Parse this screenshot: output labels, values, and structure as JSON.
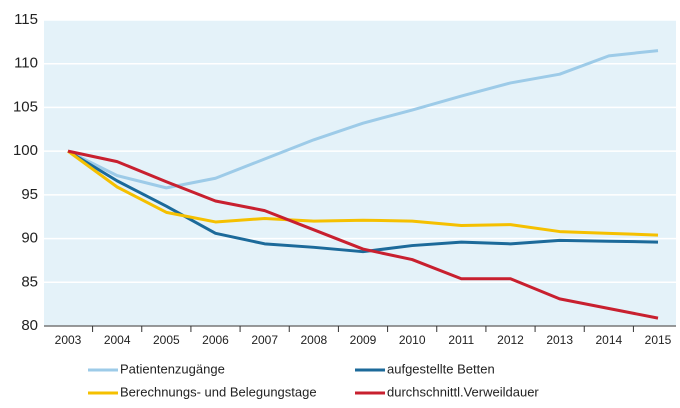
{
  "chart_data": {
    "type": "line",
    "categories": [
      "2003",
      "2004",
      "2005",
      "2006",
      "2007",
      "2008",
      "2009",
      "2010",
      "2011",
      "2012",
      "2013",
      "2014",
      "2015"
    ],
    "series": [
      {
        "name": "Patientenzugänge",
        "color": "#9dcbe8",
        "values": [
          100,
          97.2,
          95.8,
          96.9,
          99.1,
          101.3,
          103.2,
          104.7,
          106.3,
          107.8,
          108.8,
          110.9,
          111.5
        ]
      },
      {
        "name": "aufgestellte Betten",
        "color": "#1c6a9a",
        "values": [
          100,
          96.6,
          93.7,
          90.6,
          89.4,
          89.0,
          88.5,
          89.2,
          89.6,
          89.4,
          89.8,
          89.7,
          89.6
        ]
      },
      {
        "name": "Berechnungs- und Belegungstage",
        "color": "#f5c000",
        "values": [
          100,
          95.9,
          93.0,
          91.9,
          92.3,
          92.0,
          92.1,
          92.0,
          91.5,
          91.6,
          90.8,
          90.6,
          90.4
        ]
      },
      {
        "name": "durchschnittl.Verweildauer",
        "color": "#c8202f",
        "values": [
          100,
          98.8,
          96.5,
          94.3,
          93.2,
          91.0,
          88.8,
          87.6,
          85.4,
          85.4,
          83.1,
          82.0,
          80.9
        ]
      }
    ],
    "ylim": [
      80,
      115
    ],
    "yticks": [
      80,
      85,
      90,
      95,
      100,
      105,
      110,
      115
    ],
    "grid": true
  }
}
